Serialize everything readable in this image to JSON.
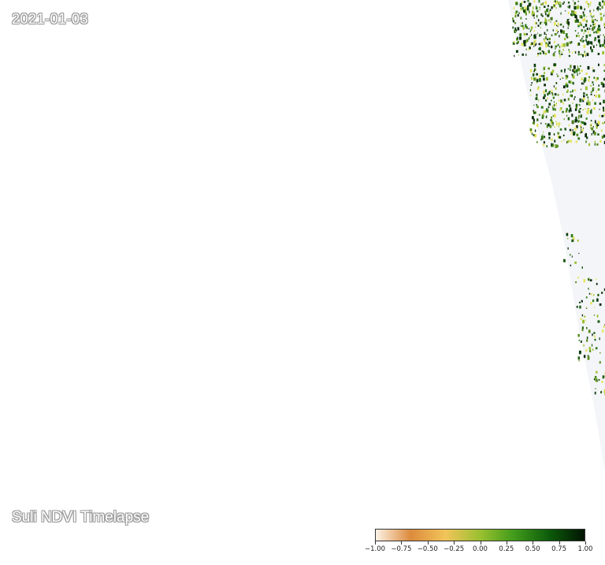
{
  "map": {
    "date": "2021-01-03",
    "title": "Suli NDVI Timelapse",
    "background_color": "#ffffff",
    "nodata_color": "#f4f5f8"
  },
  "legend": {
    "colors": [
      "#fdf2e6",
      "#dc8b3c",
      "#f2c45a",
      "#9ac02f",
      "#3f9a1a",
      "#0c5a0a",
      "#021402"
    ],
    "ticks": [
      "−1.00",
      "−0.75",
      "−0.50",
      "−0.25",
      "0.00",
      "0.25",
      "0.50",
      "0.75",
      "1.00"
    ]
  }
}
